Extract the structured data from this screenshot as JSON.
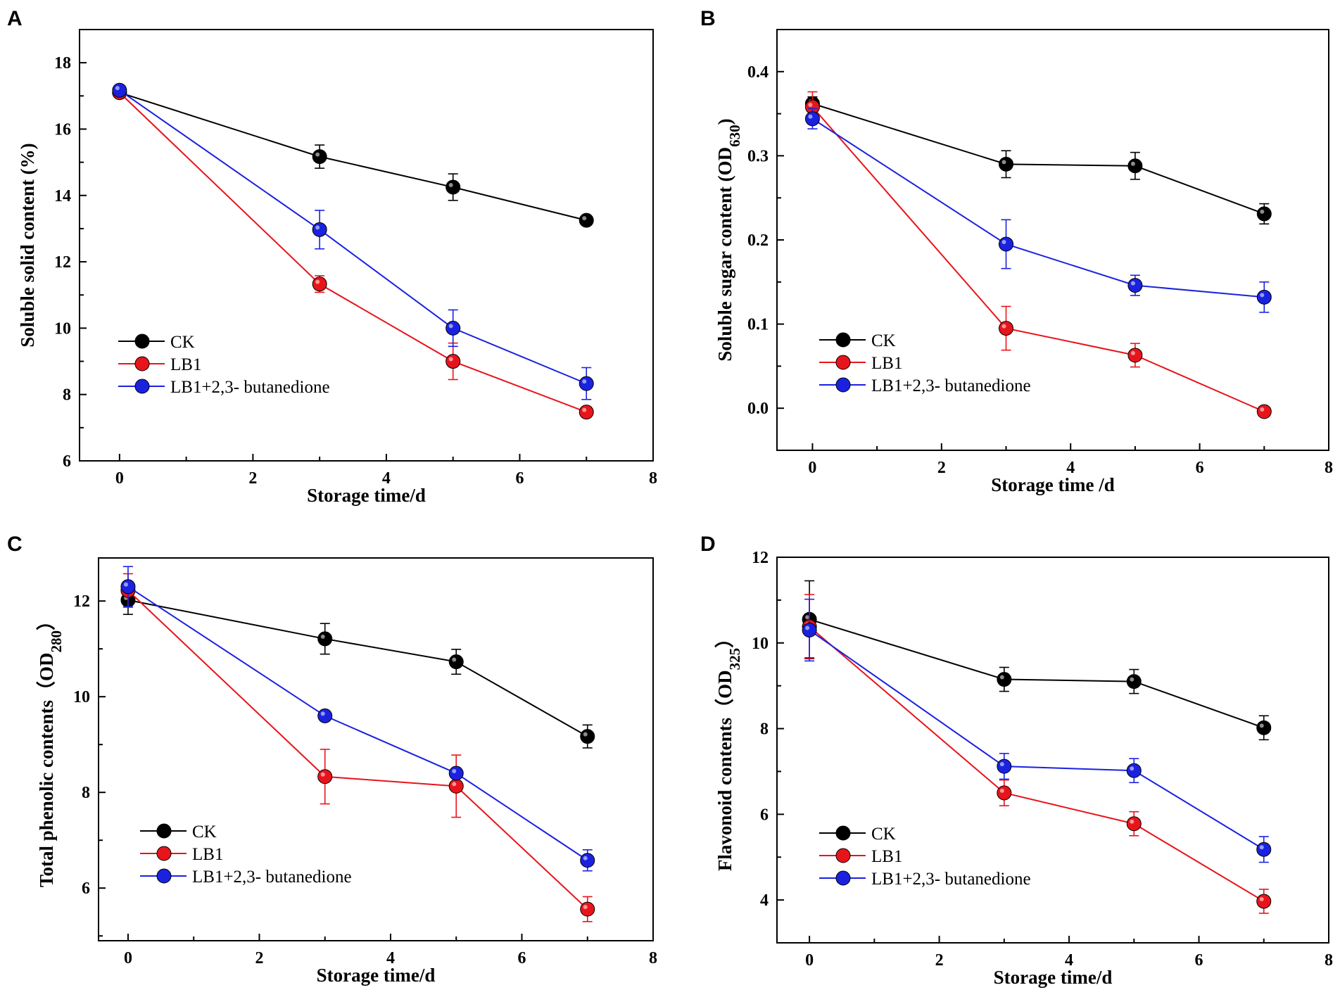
{
  "colors": {
    "CK": "#000000",
    "LB1": "#e8141b",
    "LB1+2,3- butanedione": "#1a22e0"
  },
  "chart_data": [
    {
      "panel": "A",
      "type": "line",
      "xlabel": "Storage time/d",
      "ylabel": "Soluble solid content (%)",
      "ylabel_sub": "",
      "ylabel_close": "",
      "xlim": [
        -0.6,
        8
      ],
      "ylim": [
        6,
        19
      ],
      "xticks": [
        0,
        2,
        4,
        6,
        8
      ],
      "yticks": [
        6,
        8,
        10,
        12,
        14,
        16,
        18
      ],
      "legend": "lower-left",
      "x": [
        0,
        3,
        5,
        7
      ],
      "series": [
        {
          "name": "CK",
          "values": [
            17.1,
            15.17,
            14.25,
            13.25
          ],
          "errors": [
            0.1,
            0.35,
            0.4,
            0.1
          ]
        },
        {
          "name": "LB1",
          "values": [
            17.1,
            11.33,
            9.0,
            7.47
          ],
          "errors": [
            0.08,
            0.25,
            0.55,
            0.15
          ]
        },
        {
          "name": "LB1+2,3- butanedione",
          "values": [
            17.17,
            12.97,
            10.0,
            8.33
          ],
          "errors": [
            0.08,
            0.58,
            0.55,
            0.48
          ]
        }
      ]
    },
    {
      "panel": "B",
      "type": "line",
      "xlabel": "Storage time /d",
      "ylabel": "Soluble sugar content (OD",
      "ylabel_sub": "630",
      "ylabel_close": ")",
      "xlim": [
        -0.55,
        8
      ],
      "ylim": [
        -0.05,
        0.45
      ],
      "xticks": [
        0,
        2,
        4,
        6,
        8
      ],
      "yticks": [
        0.0,
        0.1,
        0.2,
        0.3,
        0.4
      ],
      "legend": "lower-left",
      "x": [
        0,
        3,
        5,
        7
      ],
      "series": [
        {
          "name": "CK",
          "values": [
            0.362,
            0.29,
            0.288,
            0.231
          ],
          "errors": [
            0.008,
            0.016,
            0.016,
            0.012
          ]
        },
        {
          "name": "LB1",
          "values": [
            0.358,
            0.095,
            0.063,
            -0.004
          ],
          "errors": [
            0.018,
            0.026,
            0.014,
            0.004
          ]
        },
        {
          "name": "LB1+2,3- butanedione",
          "values": [
            0.344,
            0.195,
            0.146,
            0.132
          ],
          "errors": [
            0.012,
            0.029,
            0.012,
            0.018
          ]
        }
      ]
    },
    {
      "panel": "C",
      "type": "line",
      "xlabel": "Storage time/d",
      "ylabel": "Total phenolic contents（OD",
      "ylabel_sub": "280",
      "ylabel_close": "）",
      "xlim": [
        -0.45,
        8
      ],
      "ylim": [
        4.9,
        12.9
      ],
      "xticks": [
        0,
        2,
        4,
        6,
        8
      ],
      "yticks": [
        6,
        8,
        10,
        12
      ],
      "legend": "lower-left",
      "x": [
        0,
        3,
        5,
        7
      ],
      "series": [
        {
          "name": "CK",
          "values": [
            12.02,
            11.21,
            10.73,
            9.17
          ],
          "errors": [
            0.3,
            0.32,
            0.26,
            0.24
          ]
        },
        {
          "name": "LB1",
          "values": [
            12.22,
            8.33,
            8.13,
            5.56
          ],
          "errors": [
            0.35,
            0.57,
            0.65,
            0.26
          ]
        },
        {
          "name": "LB1+2,3- butanedione",
          "values": [
            12.3,
            9.6,
            8.4,
            6.58
          ],
          "errors": [
            0.42,
            0.06,
            0.05,
            0.22
          ]
        }
      ]
    },
    {
      "panel": "D",
      "type": "line",
      "xlabel": "Storage time/d",
      "ylabel": "Flavonoid contents（OD",
      "ylabel_sub": "325",
      "ylabel_close": "）",
      "xlim": [
        -0.5,
        8
      ],
      "ylim": [
        3,
        12
      ],
      "xticks": [
        0,
        2,
        4,
        6,
        8
      ],
      "yticks": [
        4,
        6,
        8,
        10,
        12
      ],
      "legend": "lower-left",
      "x": [
        0,
        3,
        5,
        7
      ],
      "series": [
        {
          "name": "CK",
          "values": [
            10.55,
            9.15,
            9.1,
            8.02
          ],
          "errors": [
            0.9,
            0.28,
            0.28,
            0.28
          ]
        },
        {
          "name": "LB1",
          "values": [
            10.38,
            6.5,
            5.78,
            3.97
          ],
          "errors": [
            0.75,
            0.3,
            0.28,
            0.28
          ]
        },
        {
          "name": "LB1+2,3- butanedione",
          "values": [
            10.3,
            7.12,
            7.02,
            5.18
          ],
          "errors": [
            0.72,
            0.3,
            0.28,
            0.3
          ]
        }
      ]
    }
  ]
}
